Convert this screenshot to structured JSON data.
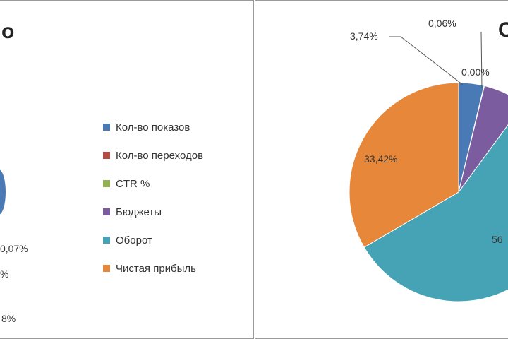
{
  "left_panel": {
    "title_fragment": "о",
    "visible_labels": [
      "0,07%",
      "%",
      "8%"
    ]
  },
  "right_panel": {
    "title_fragment": "С"
  },
  "chart_data": {
    "type": "pie",
    "legend": {
      "placement": "right",
      "items": [
        {
          "label": "Кол-во показов",
          "color": "#4a7ab5"
        },
        {
          "label": "Кол-во переходов",
          "color": "#b84a46"
        },
        {
          "label": "CTR %",
          "color": "#93b150"
        },
        {
          "label": "Бюджеты",
          "color": "#7b5c9e"
        },
        {
          "label": "Оборот",
          "color": "#46a3b5"
        },
        {
          "label": "Чистая прибыль",
          "color": "#e6873a"
        }
      ]
    },
    "slices": [
      {
        "category": "Кол-во показов",
        "value": 3.74,
        "label": "3,74%",
        "color": "#4a7ab5"
      },
      {
        "category": "Кол-во переходов",
        "value": 0.06,
        "label": "0,06%",
        "color": "#b84a46"
      },
      {
        "category": "CTR %",
        "value": 0.0,
        "label": "0,00%",
        "color": "#93b150"
      },
      {
        "category": "Бюджеты",
        "value": 6.3,
        "label": "",
        "color": "#7b5c9e"
      },
      {
        "category": "Оборот",
        "value": 56.48,
        "label": "56",
        "color": "#46a3b5"
      },
      {
        "category": "Чистая прибыль",
        "value": 33.42,
        "label": "33,42%",
        "color": "#e6873a"
      }
    ]
  }
}
